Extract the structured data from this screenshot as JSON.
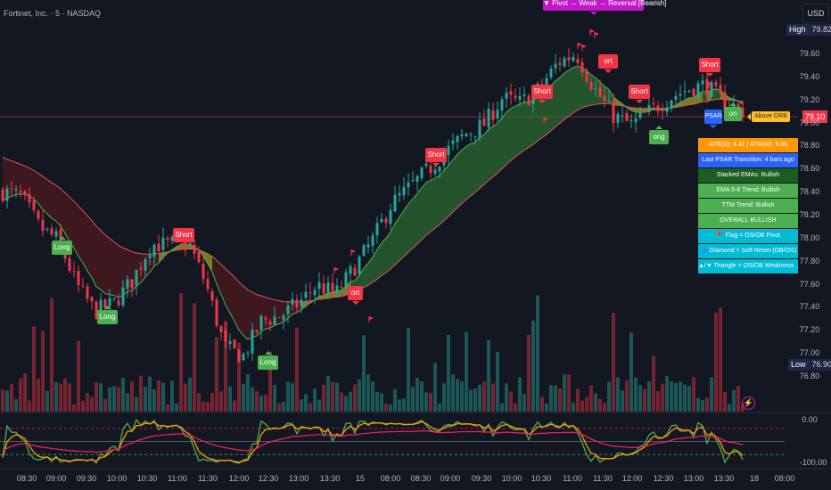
{
  "header": {
    "title": "Fortinet, Inc. · 5 · NASDAQ",
    "currency": "USD"
  },
  "price_axis": {
    "ticks": [
      "79.60",
      "79.40",
      "79.20",
      "79.00",
      "78.80",
      "78.60",
      "78.40",
      "78.20",
      "78.00",
      "77.80",
      "77.60",
      "77.40",
      "77.20",
      "77.00",
      "76.80"
    ],
    "high_label": "High",
    "high_value": "79.82",
    "low_label": "Low",
    "low_value": "76.90",
    "last_price": "79.10"
  },
  "oscillator_axis": {
    "ticks": [
      "0.00",
      "-100.00"
    ]
  },
  "time_axis": {
    "ticks": [
      "08:30",
      "09:00",
      "09:30",
      "10:00",
      "10:30",
      "11:00",
      "11:30",
      "12:00",
      "12:30",
      "13:00",
      "13:30",
      "15",
      "08:00",
      "08:30",
      "09:00",
      "09:30",
      "10:00",
      "10:30",
      "11:00",
      "11:30",
      "12:00",
      "12:30",
      "13:00",
      "13:30",
      "18",
      "08:00"
    ]
  },
  "signals": {
    "short": "Short",
    "long": "Long",
    "short_partial": "ort",
    "long_partial": "ong",
    "long_partial2": "on",
    "psar": "PSAR",
    "above_orb": "Above ORB",
    "pivot": "▼ Pivot → Weak → Reversal [Bearish]"
  },
  "info_table": [
    {
      "text": "ATR(D): 4.41 | ATR(W): 9.88",
      "color": "#ff9800"
    },
    {
      "text": "Last PSAR Transition: 4 bars ago",
      "color": "#2962ff"
    },
    {
      "text": "Stacked EMAs: Bullish",
      "color": "#1b5e20"
    },
    {
      "text": "EMA 5-8 Trend: Bullish",
      "color": "#4caf50"
    },
    {
      "text": "TTM Trend: Bullish",
      "color": "#4caf50"
    },
    {
      "text": "OVERALL BULLISH",
      "color": "#4caf50"
    },
    {
      "text": "🚩 Flag = OS/OB Pivot",
      "color": "#00bcd4"
    },
    {
      "text": "🔷 Diamond = Soft Reset (OB/OS)",
      "color": "#00bcd4"
    },
    {
      "text": "▲/▼ Triangle = OS/OB Weakness → Reversal",
      "color": "#00bcd4"
    }
  ],
  "colors": {
    "background": "#131722",
    "up": "#26a69a",
    "down": "#f23645",
    "ema_fast": "#4caf50",
    "ema_slow": "#e0525a",
    "osc_green": "#4caf50",
    "osc_orange": "#ff9800",
    "osc_pink": "#e91e63"
  },
  "icons": {
    "live": "lightning-icon",
    "flag": "flag-icon"
  },
  "chart_data": {
    "type": "candlestick",
    "symbol": "Fortinet, Inc. · 5 · NASDAQ",
    "x_ticks": [
      "08:30",
      "09:00",
      "09:30",
      "10:00",
      "10:30",
      "11:00",
      "11:30",
      "12:00",
      "12:30",
      "13:00",
      "13:30",
      "15",
      "08:00",
      "08:30",
      "09:00",
      "09:30",
      "10:00",
      "10:30",
      "11:00",
      "11:30",
      "12:00",
      "12:30",
      "13:00",
      "13:30",
      "18",
      "08:00"
    ],
    "ylim": [
      76.8,
      79.82
    ],
    "high": 79.82,
    "low": 76.9,
    "last": 79.1,
    "close_path": [
      78.4,
      78.36,
      78.09,
      77.98,
      77.59,
      77.36,
      77.43,
      77.63,
      77.94,
      77.94,
      77.98,
      77.59,
      77.05,
      76.97,
      77.28,
      77.32,
      77.43,
      77.59,
      77.51,
      77.74,
      77.98,
      78.29,
      78.44,
      78.59,
      78.75,
      78.9,
      78.98,
      79.21,
      79.17,
      79.29,
      79.52,
      79.6,
      79.29,
      79.06,
      78.98,
      79.1,
      79.21,
      79.29,
      79.33,
      79.17,
      79.1
    ],
    "oscillator": {
      "ylim": [
        -100,
        0
      ],
      "levels": [
        -20,
        -50,
        -80
      ]
    }
  }
}
